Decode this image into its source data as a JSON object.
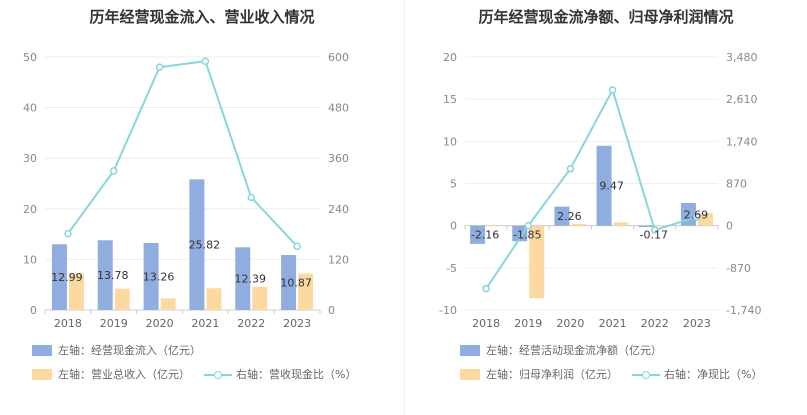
{
  "colors": {
    "bar1": "#8fadde",
    "bar2": "#fcd9a1",
    "line": "#88d6dc",
    "grid": "#eeeeee",
    "axis": "#cccccc"
  },
  "chart_data": [
    {
      "type": "bar",
      "title": "历年经营现金流入、营业收入情况",
      "categories": [
        "2018",
        "2019",
        "2020",
        "2021",
        "2022",
        "2023"
      ],
      "left_axis": {
        "min": 0,
        "max": 50,
        "ticks": [
          "0",
          "10",
          "20",
          "30",
          "40",
          "50"
        ]
      },
      "right_axis": {
        "min": 0,
        "max": 600,
        "ticks": [
          "0",
          "120",
          "240",
          "360",
          "480",
          "600"
        ]
      },
      "series": [
        {
          "name": "左轴：经营现金流入（亿元）",
          "axis": "left",
          "type": "bar",
          "values": [
            12.99,
            13.78,
            13.26,
            25.82,
            12.39,
            10.87
          ],
          "labels": [
            "12.99",
            "13.78",
            "13.26",
            "25.82",
            "12.39",
            "10.87"
          ]
        },
        {
          "name": "左轴：营业总收入（亿元）",
          "axis": "left",
          "type": "bar",
          "values": [
            7.2,
            4.2,
            2.3,
            4.3,
            4.6,
            7.2
          ]
        },
        {
          "name": "右轴：营收现金比（%）",
          "axis": "right",
          "type": "line",
          "values": [
            181,
            330,
            576,
            590,
            267,
            151
          ]
        }
      ],
      "legend_position": "bottom"
    },
    {
      "type": "bar",
      "title": "历年经营现金流净额、归母净利润情况",
      "categories": [
        "2018",
        "2019",
        "2020",
        "2021",
        "2022",
        "2023"
      ],
      "left_axis": {
        "min": -10,
        "max": 20,
        "ticks": [
          "-10",
          "-5",
          "0",
          "5",
          "10",
          "15",
          "20"
        ]
      },
      "right_axis": {
        "min": -1740,
        "max": 3480,
        "ticks": [
          "-1,740",
          "-870",
          "0",
          "870",
          "1,740",
          "2,610",
          "3,480"
        ]
      },
      "series": [
        {
          "name": "左轴：经营活动现金流净额（亿元）",
          "axis": "left",
          "type": "bar",
          "values": [
            -2.16,
            -1.85,
            2.26,
            9.47,
            -0.17,
            2.69
          ],
          "labels": [
            "-2.16",
            "-1.85",
            "2.26",
            "9.47",
            "-0.17",
            "2.69"
          ]
        },
        {
          "name": "左轴：归母净利润（亿元）",
          "axis": "left",
          "type": "bar",
          "values": [
            0.1,
            -8.6,
            0.2,
            0.4,
            -0.1,
            1.5
          ]
        },
        {
          "name": "右轴：净现比（%）",
          "axis": "right",
          "type": "line",
          "values": [
            -1300,
            0,
            1175,
            2800,
            -90,
            180
          ]
        }
      ],
      "legend_position": "bottom"
    }
  ]
}
